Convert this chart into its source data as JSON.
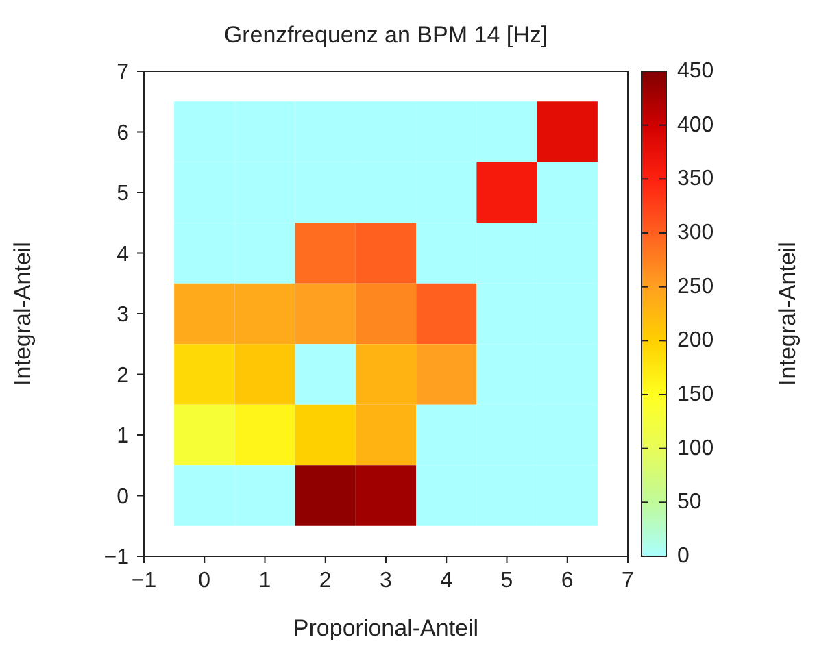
{
  "chart_data": {
    "type": "heatmap",
    "title": "Grenzfrequenz an BPM 14 [Hz]",
    "xlabel": "Proporional-Anteil",
    "ylabel": "Integral-Anteil",
    "clabel": "Integral-Anteil",
    "x": [
      0,
      1,
      2,
      3,
      4,
      5,
      6
    ],
    "cells": [
      [
        0,
        0,
        0,
        0,
        0,
        0,
        380
      ],
      [
        0,
        0,
        0,
        0,
        0,
        360,
        0
      ],
      [
        0,
        0,
        290,
        300,
        0,
        0,
        0
      ],
      [
        240,
        240,
        250,
        270,
        300,
        0,
        0
      ],
      [
        190,
        210,
        0,
        230,
        250,
        0,
        0
      ],
      [
        130,
        160,
        200,
        230,
        0,
        0,
        0
      ],
      [
        0,
        0,
        440,
        430,
        0,
        0,
        0
      ]
    ],
    "xlim": [
      -1,
      7
    ],
    "xticks": [
      -1,
      0,
      1,
      2,
      3,
      4,
      5,
      6,
      7
    ],
    "ylim": [
      -1,
      7
    ],
    "yticks": [
      -1,
      0,
      1,
      2,
      3,
      4,
      5,
      6,
      7
    ],
    "clim": [
      0,
      450
    ],
    "cticks": [
      0,
      50,
      100,
      150,
      200,
      250,
      300,
      350,
      400,
      450
    ],
    "grid": false
  }
}
